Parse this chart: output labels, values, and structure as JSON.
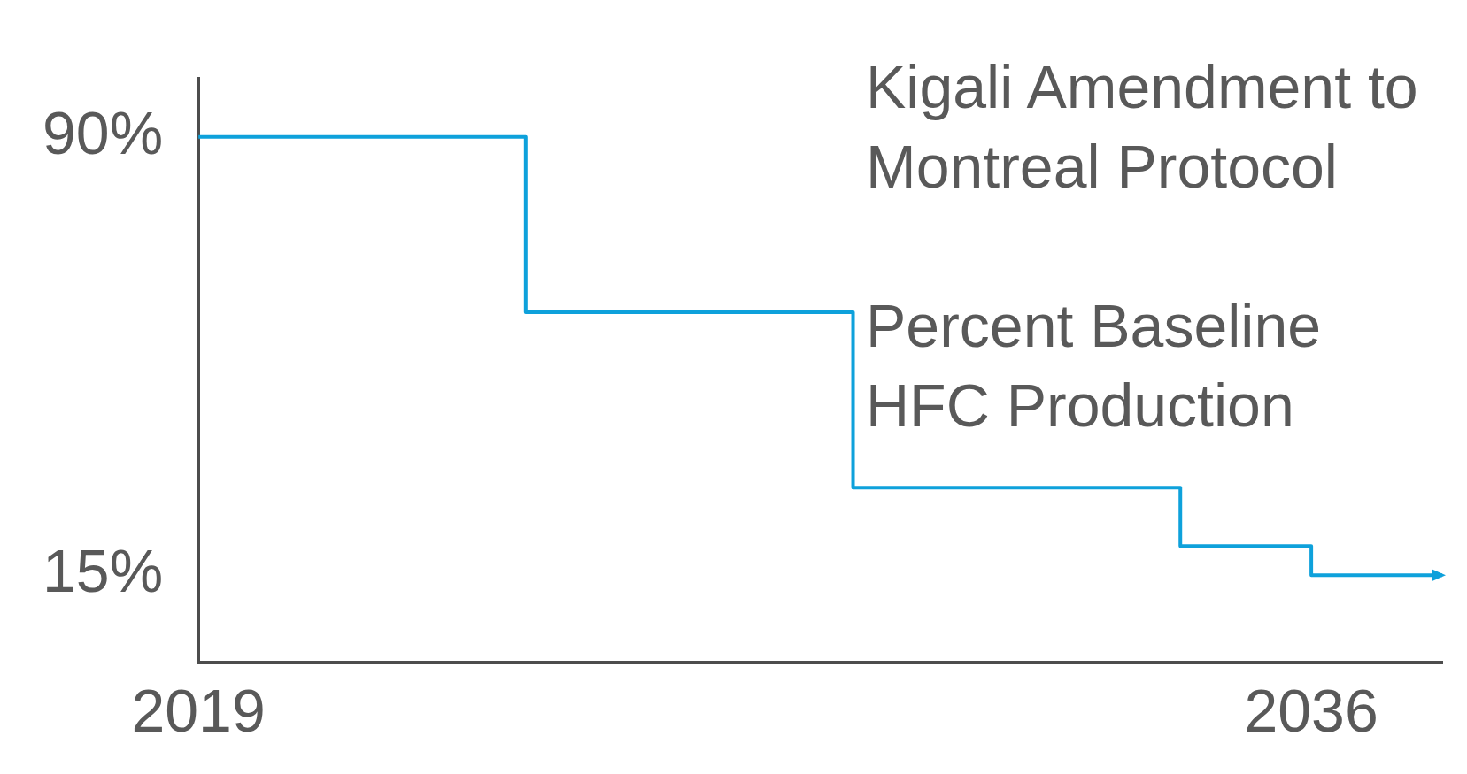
{
  "chart_data": {
    "type": "step",
    "title": "Kigali Amendment to Montreal Protocol",
    "subtitle": "Percent Baseline HFC Production",
    "x": [
      2019,
      2024,
      2029,
      2034,
      2036,
      2038
    ],
    "series": [
      {
        "color": "#0ea1db",
        "values": [
          90,
          60,
          30,
          20,
          15,
          15
        ]
      }
    ],
    "xlim": [
      2019,
      2038
    ],
    "xticks": [
      2019,
      2036
    ],
    "ylim": [
      0,
      100
    ],
    "yticks": [
      {
        "value": 90,
        "label": "90%"
      },
      {
        "value": 15,
        "label": "15%"
      }
    ],
    "grid": false,
    "legend": false,
    "marker": "none",
    "line_style": "solid"
  }
}
